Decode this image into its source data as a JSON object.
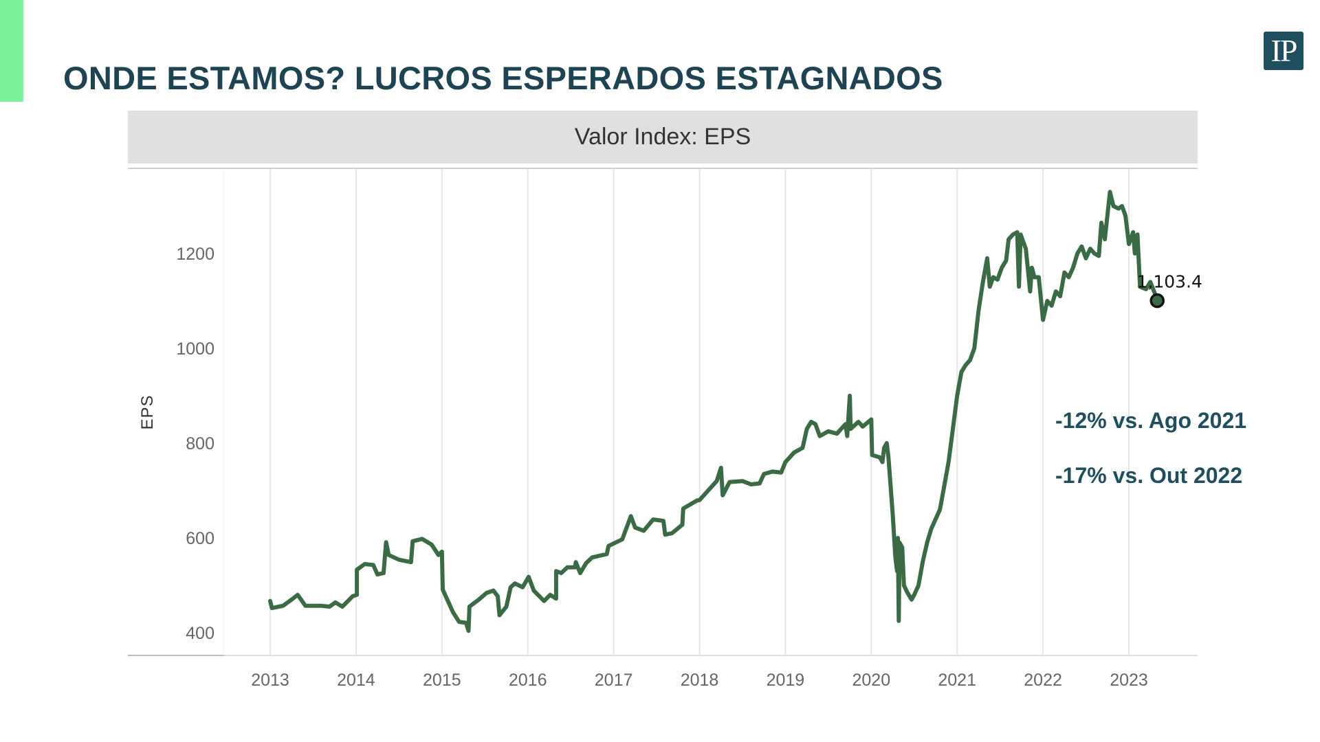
{
  "slide": {
    "title": "ONDE ESTAMOS? LUCROS ESPERADOS ESTAGNADOS",
    "logo_text": "IP",
    "accent_color": "#7cf29a",
    "brand_color": "#1f4e5f"
  },
  "annotations": [
    "-12% vs. Ago 2021",
    "-17% vs. Out 2022"
  ],
  "chart_data": {
    "type": "line",
    "title": "Valor Index: EPS",
    "xlabel": "",
    "ylabel": "EPS",
    "xlim": [
      2012.45,
      2023.8
    ],
    "ylim": [
      350,
      1380
    ],
    "x_ticks": [
      "2013",
      "2014",
      "2015",
      "2016",
      "2017",
      "2018",
      "2019",
      "2020",
      "2021",
      "2022",
      "2023"
    ],
    "y_ticks": [
      "400",
      "600",
      "800",
      "1000",
      "1200"
    ],
    "grid": "vertical",
    "line_color": "#3a6b44",
    "end_label": "1,103.4",
    "series": [
      {
        "x": [
          2013.0,
          2013.02,
          2013.15,
          2013.25,
          2013.32,
          2013.41,
          2013.59,
          2013.69,
          2013.76,
          2013.84,
          2013.96,
          2014.01,
          2014.01,
          2014.1,
          2014.2,
          2014.25,
          2014.32,
          2014.35,
          2014.38,
          2014.5,
          2014.64,
          2014.66,
          2014.77,
          2014.88,
          2014.96,
          2015.0,
          2015.01,
          2015.13,
          2015.2,
          2015.28,
          2015.31,
          2015.32,
          2015.43,
          2015.52,
          2015.6,
          2015.65,
          2015.67,
          2015.75,
          2015.8,
          2015.85,
          2015.94,
          2016.01,
          2016.07,
          2016.19,
          2016.26,
          2016.33,
          2016.33,
          2016.39,
          2016.46,
          2016.55,
          2016.56,
          2016.61,
          2016.68,
          2016.75,
          2016.92,
          2016.94,
          2017.1,
          2017.2,
          2017.25,
          2017.35,
          2017.46,
          2017.58,
          2017.6,
          2017.68,
          2017.8,
          2017.81,
          2017.97,
          2018.0,
          2018.1,
          2018.2,
          2018.25,
          2018.27,
          2018.35,
          2018.5,
          2018.6,
          2018.7,
          2018.75,
          2018.85,
          2018.95,
          2019.0,
          2019.1,
          2019.2,
          2019.25,
          2019.3,
          2019.35,
          2019.4,
          2019.5,
          2019.6,
          2019.7,
          2019.72,
          2019.75,
          2019.76,
          2019.85,
          2019.9,
          2020.0,
          2020.01,
          2020.1,
          2020.13,
          2020.15,
          2020.18,
          2020.2,
          2020.25,
          2020.28,
          2020.3,
          2020.31,
          2020.32,
          2020.33,
          2020.36,
          2020.38,
          2020.42,
          2020.47,
          2020.5,
          2020.55,
          2020.6,
          2020.65,
          2020.7,
          2020.75,
          2020.8,
          2020.85,
          2020.9,
          2020.95,
          2021.0,
          2021.05,
          2021.1,
          2021.15,
          2021.2,
          2021.25,
          2021.3,
          2021.35,
          2021.38,
          2021.42,
          2021.47,
          2021.52,
          2021.57,
          2021.6,
          2021.65,
          2021.7,
          2021.72,
          2021.74,
          2021.8,
          2021.85,
          2021.87,
          2021.9,
          2021.95,
          2022.0,
          2022.05,
          2022.1,
          2022.15,
          2022.2,
          2022.25,
          2022.3,
          2022.35,
          2022.4,
          2022.45,
          2022.5,
          2022.55,
          2022.6,
          2022.65,
          2022.68,
          2022.72,
          2022.78,
          2022.82,
          2022.88,
          2022.92,
          2022.96,
          2023.0,
          2023.05,
          2023.07,
          2023.1,
          2023.13,
          2023.2,
          2023.25,
          2023.33
        ],
        "y": [
          467,
          452,
          457,
          470,
          480,
          457,
          457,
          455,
          464,
          455,
          477,
          480,
          533,
          545,
          543,
          523,
          526,
          591,
          564,
          554,
          549,
          593,
          598,
          586,
          564,
          571,
          491,
          443,
          423,
          421,
          404,
          455,
          470,
          484,
          489,
          477,
          437,
          455,
          496,
          504,
          496,
          518,
          489,
          467,
          480,
          472,
          530,
          526,
          538,
          538,
          549,
          526,
          547,
          559,
          566,
          583,
          597,
          646,
          622,
          615,
          639,
          636,
          607,
          610,
          628,
          662,
          679,
          680,
          700,
          720,
          748,
          690,
          718,
          720,
          713,
          715,
          735,
          740,
          738,
          760,
          780,
          790,
          830,
          845,
          840,
          815,
          825,
          820,
          840,
          815,
          900,
          830,
          845,
          835,
          850,
          775,
          770,
          760,
          790,
          800,
          770,
          650,
          560,
          530,
          600,
          425,
          590,
          580,
          500,
          485,
          470,
          480,
          500,
          550,
          590,
          620,
          640,
          660,
          710,
          760,
          830,
          900,
          950,
          965,
          975,
          1000,
          1080,
          1140,
          1190,
          1130,
          1150,
          1145,
          1170,
          1185,
          1230,
          1240,
          1245,
          1130,
          1240,
          1210,
          1120,
          1170,
          1150,
          1150,
          1060,
          1100,
          1090,
          1120,
          1110,
          1160,
          1150,
          1170,
          1200,
          1215,
          1190,
          1210,
          1200,
          1195,
          1265,
          1230,
          1330,
          1300,
          1295,
          1300,
          1280,
          1220,
          1245,
          1200,
          1240,
          1130,
          1125,
          1140,
          1103.4
        ]
      }
    ]
  }
}
